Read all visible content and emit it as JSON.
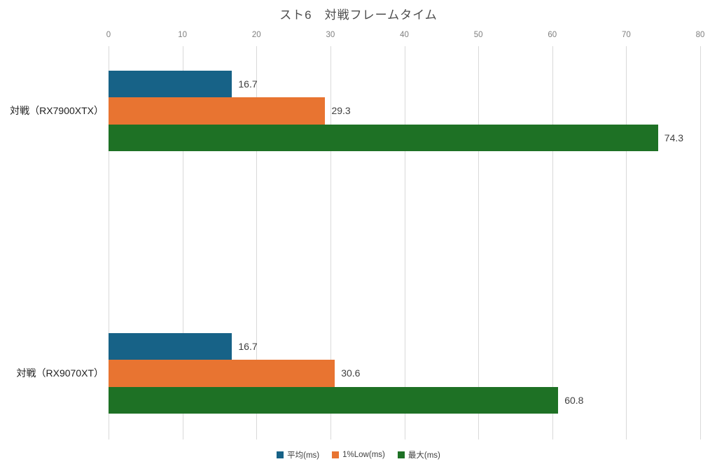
{
  "title": "スト6　対戦フレームタイム",
  "chart_data": {
    "type": "bar",
    "orientation": "horizontal",
    "title": "スト6　対戦フレームタイム",
    "categories": [
      "対戦（RX7900XTX）",
      "対戦（RX9070XT）"
    ],
    "series": [
      {
        "name": "平均(ms)",
        "color": "#176287",
        "values": [
          16.7,
          16.7
        ]
      },
      {
        "name": "1%Low(ms)",
        "color": "#E87431",
        "values": [
          29.3,
          30.6
        ]
      },
      {
        "name": "最大(ms)",
        "color": "#1E7125",
        "values": [
          74.3,
          60.8
        ]
      }
    ],
    "xlim": [
      0,
      80
    ],
    "x_ticks": [
      0,
      10,
      20,
      30,
      40,
      50,
      60,
      70,
      80
    ],
    "grid": "vertical",
    "legend_position": "bottom",
    "value_labels": true
  },
  "colors": {
    "background": "#FFFFFF",
    "grid": "#D9D9D9",
    "tick_label": "#7F7F7F",
    "value_label": "#404040",
    "category_label": "#1F1F1F",
    "title": "#4D4D4D"
  }
}
